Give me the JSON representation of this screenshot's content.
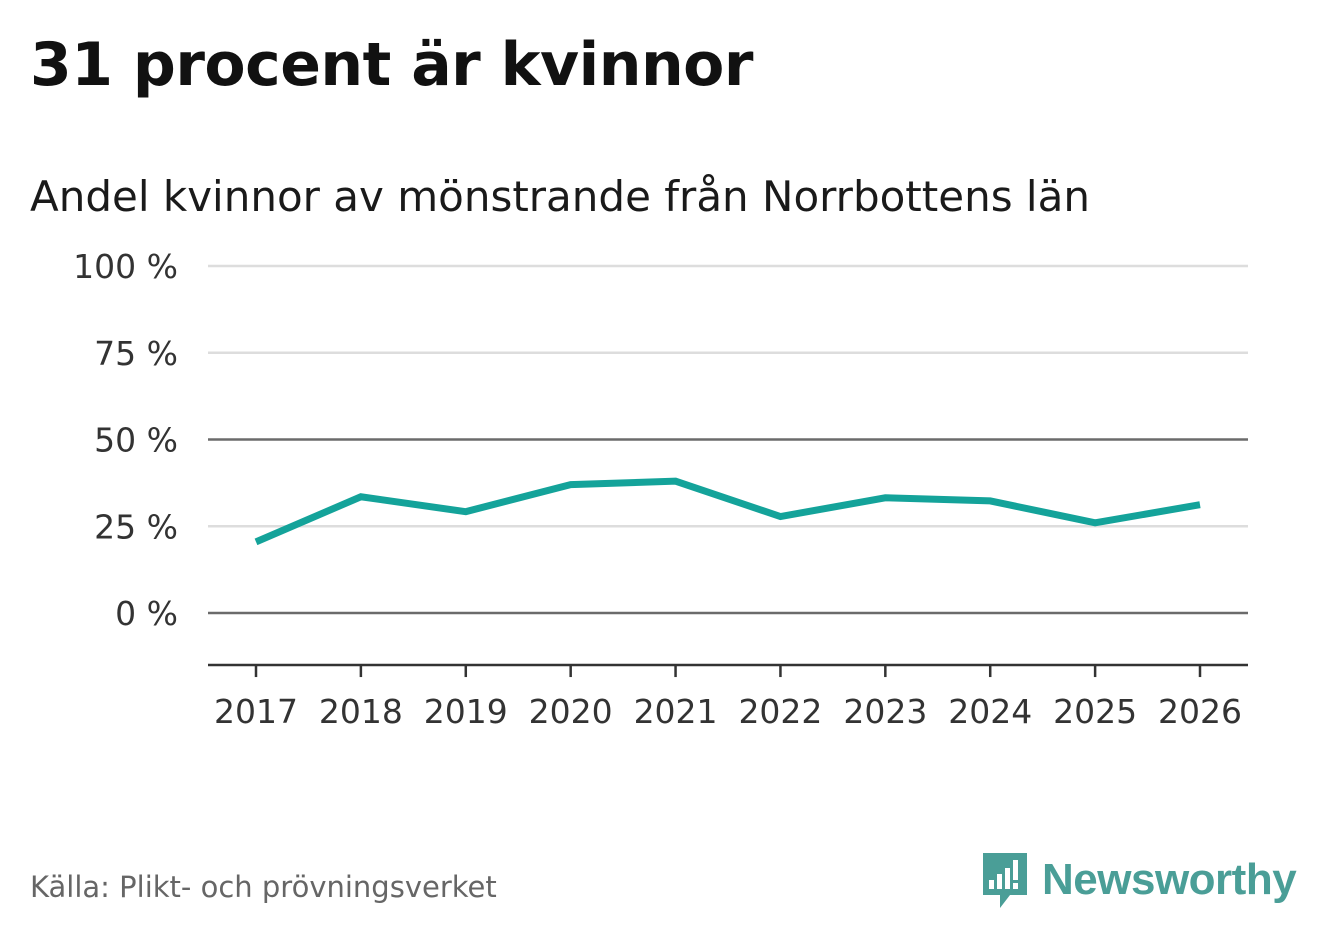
{
  "title": "31 procent är kvinnor",
  "subtitle": "Andel kvinnor av mönstrande från Norrbottens län",
  "source": "Källa: Plikt- och prövningsverket",
  "brand": {
    "name": "Newsworthy",
    "icon": "newsworthy-logo-icon",
    "color": "#4a9e97"
  },
  "chart_data": {
    "type": "line",
    "title": "Andel kvinnor av mönstrande från Norrbottens län",
    "xlabel": "",
    "ylabel": "",
    "categories": [
      "2017",
      "2018",
      "2019",
      "2020",
      "2021",
      "2022",
      "2023",
      "2024",
      "2025",
      "2026"
    ],
    "series": [
      {
        "name": "Andel kvinnor",
        "color": "#14a39a",
        "values": [
          20.5,
          33.5,
          29.2,
          37.0,
          38.0,
          27.8,
          33.2,
          32.3,
          26.0,
          31.2
        ]
      }
    ],
    "ylim": [
      -15,
      100
    ],
    "yticks": [
      100,
      75,
      50,
      25,
      0
    ],
    "ytick_labels": [
      "100 %",
      "75 %",
      "50 %",
      "25 %",
      "0 %"
    ],
    "emphasized_gridlines": [
      50,
      0
    ],
    "grid": true,
    "legend": "none"
  }
}
